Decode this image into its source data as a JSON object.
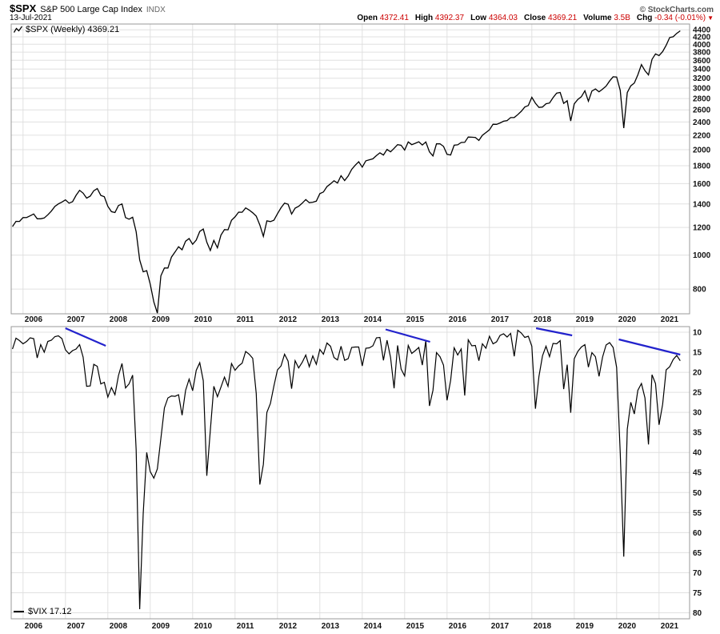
{
  "header": {
    "symbol": "$SPX",
    "name": "S&P 500 Large Cap Index",
    "exchange": "INDX",
    "date": "13-Jul-2021",
    "copyright": "© StockCharts.com",
    "quote": {
      "open_label": "Open",
      "open": "4372.41",
      "high_label": "High",
      "high": "4392.37",
      "low_label": "Low",
      "low": "4364.03",
      "close_label": "Close",
      "close": "4369.21",
      "volume_label": "Volume",
      "volume": "3.5B",
      "chg_label": "Chg",
      "chg": "-0.34 (-0.01%)",
      "chg_arrow": "▼"
    }
  },
  "legends": {
    "spx": "$SPX (Weekly) 4369.21",
    "vix": "$VIX 17.12"
  },
  "colors": {
    "line": "#000000",
    "grid": "#e0e0e0",
    "border": "#999999",
    "annotation": "#2222cc",
    "quote_down": "#cc0000",
    "axis_text": "#111111"
  },
  "chart_data": [
    {
      "type": "line",
      "title": "$SPX (Weekly) 4369.21",
      "symbol": "$SPX",
      "timeframe": "Weekly",
      "last": 4369.21,
      "scale": "log",
      "grid": true,
      "x_start": 2005.75,
      "x_interval_years": 0.0833333,
      "x_ticks": [
        2006,
        2007,
        2008,
        2009,
        2010,
        2011,
        2012,
        2013,
        2014,
        2015,
        2016,
        2017,
        2018,
        2019,
        2020,
        2021
      ],
      "y_ticks": [
        800,
        1000,
        1200,
        1400,
        1600,
        1800,
        2000,
        2200,
        2400,
        2600,
        2800,
        3000,
        3200,
        3400,
        3600,
        3800,
        4000,
        4200,
        4400
      ],
      "ylim": [
        680,
        4570
      ],
      "values": [
        1207,
        1249,
        1248,
        1280,
        1281,
        1295,
        1311,
        1270,
        1270,
        1277,
        1304,
        1336,
        1378,
        1401,
        1418,
        1438,
        1407,
        1421,
        1482,
        1531,
        1503,
        1455,
        1474,
        1527,
        1549,
        1481,
        1468,
        1379,
        1331,
        1323,
        1386,
        1400,
        1280,
        1267,
        1283,
        1166,
        969,
        896,
        903,
        826,
        735,
        683,
        873,
        919,
        919,
        987,
        1021,
        1057,
        1036,
        1096,
        1115,
        1074,
        1104,
        1169,
        1187,
        1089,
        1031,
        1102,
        1049,
        1141,
        1183,
        1181,
        1258,
        1286,
        1327,
        1326,
        1364,
        1345,
        1321,
        1292,
        1219,
        1131,
        1253,
        1247,
        1258,
        1312,
        1366,
        1408,
        1398,
        1310,
        1362,
        1379,
        1407,
        1441,
        1412,
        1416,
        1426,
        1498,
        1515,
        1569,
        1598,
        1631,
        1606,
        1686,
        1633,
        1682,
        1757,
        1806,
        1848,
        1783,
        1859,
        1872,
        1884,
        1924,
        1960,
        1931,
        2003,
        1972,
        2018,
        2068,
        2059,
        1995,
        2105,
        2068,
        2086,
        2107,
        2063,
        2104,
        1972,
        1920,
        2079,
        2080,
        2044,
        1940,
        1932,
        2060,
        2065,
        2097,
        2099,
        2174,
        2171,
        2168,
        2126,
        2199,
        2239,
        2279,
        2364,
        2363,
        2384,
        2412,
        2423,
        2470,
        2472,
        2519,
        2575,
        2648,
        2674,
        2824,
        2714,
        2641,
        2648,
        2705,
        2718,
        2816,
        2902,
        2914,
        2712,
        2760,
        2416,
        2704,
        2784,
        2834,
        2946,
        2752,
        2942,
        2980,
        2926,
        2977,
        3038,
        3141,
        3231,
        3226,
        2954,
        2305,
        2912,
        3044,
        3100,
        3271,
        3500,
        3363,
        3270,
        3622,
        3756,
        3714,
        3811,
        3973,
        4181,
        4204,
        4297,
        4369
      ]
    },
    {
      "type": "line",
      "title": "$VIX 17.12",
      "symbol": "$VIX",
      "last": 17.12,
      "scale": "linear_inverted",
      "grid": true,
      "x_start": 2005.75,
      "x_interval_years": 0.0833333,
      "x_ticks": [
        2006,
        2007,
        2008,
        2009,
        2010,
        2011,
        2012,
        2013,
        2014,
        2015,
        2016,
        2017,
        2018,
        2019,
        2020,
        2021
      ],
      "y_ticks": [
        10,
        15,
        20,
        25,
        30,
        35,
        40,
        45,
        50,
        55,
        60,
        65,
        70,
        75,
        80
      ],
      "ylim": [
        8.6,
        81.5
      ],
      "values": [
        14.2,
        11.5,
        12.1,
        12.9,
        12.3,
        11.4,
        11.6,
        16.4,
        13.1,
        15.0,
        12.3,
        12.0,
        11.1,
        10.9,
        11.6,
        14.4,
        15.4,
        14.6,
        14.2,
        13.1,
        16.2,
        23.5,
        23.4,
        18.0,
        18.5,
        22.9,
        22.5,
        26.2,
        23.8,
        25.6,
        20.8,
        17.8,
        23.9,
        22.9,
        20.7,
        39.4,
        79.1,
        55.3,
        40.0,
        44.8,
        46.4,
        44.1,
        36.5,
        28.9,
        26.4,
        25.9,
        26.0,
        25.6,
        30.7,
        24.5,
        21.7,
        24.6,
        19.5,
        17.6,
        22.1,
        45.8,
        34.5,
        23.5,
        26.1,
        23.7,
        21.2,
        23.5,
        17.8,
        19.5,
        18.4,
        17.7,
        14.8,
        15.5,
        16.5,
        25.3,
        48.0,
        43.0,
        30.0,
        27.8,
        23.4,
        19.4,
        18.4,
        15.5,
        17.2,
        24.1,
        17.1,
        18.9,
        17.5,
        15.7,
        18.6,
        15.9,
        18.0,
        14.3,
        15.5,
        12.7,
        13.5,
        16.3,
        16.9,
        13.5,
        17.0,
        16.6,
        13.8,
        13.7,
        13.7,
        18.4,
        14.0,
        13.9,
        13.4,
        11.4,
        11.3,
        17.0,
        12.0,
        16.3,
        24.0,
        13.3,
        19.2,
        20.9,
        13.3,
        15.3,
        14.6,
        13.8,
        18.2,
        12.1,
        28.4,
        24.5,
        15.1,
        16.1,
        18.2,
        27.0,
        22.0,
        13.9,
        15.7,
        14.2,
        25.8,
        11.9,
        13.4,
        13.3,
        17.1,
        12.9,
        14.0,
        11.0,
        12.9,
        12.4,
        10.8,
        10.4,
        11.2,
        10.3,
        16.0,
        9.5,
        10.2,
        11.3,
        11.0,
        13.5,
        29.1,
        21.0,
        15.9,
        13.5,
        16.1,
        12.8,
        12.9,
        12.1,
        24.2,
        18.1,
        30.1,
        16.6,
        14.8,
        13.7,
        13.1,
        18.7,
        15.1,
        16.1,
        21.0,
        16.2,
        13.2,
        12.6,
        13.8,
        18.8,
        40.1,
        66.0,
        34.2,
        27.5,
        30.4,
        24.5,
        22.8,
        26.4,
        38.0,
        20.6,
        22.8,
        33.1,
        28.0,
        19.4,
        18.6,
        16.8,
        15.8,
        17.12
      ],
      "annotations": [
        {
          "type": "trendline",
          "x1": 2007.0,
          "y1": 9.0,
          "x2": 2007.95,
          "y2": 13.4
        },
        {
          "type": "trendline",
          "x1": 2014.55,
          "y1": 9.3,
          "x2": 2015.6,
          "y2": 12.4
        },
        {
          "type": "trendline",
          "x1": 2018.1,
          "y1": 9.0,
          "x2": 2018.95,
          "y2": 10.8
        },
        {
          "type": "trendline",
          "x1": 2020.05,
          "y1": 11.8,
          "x2": 2021.5,
          "y2": 15.6
        }
      ]
    }
  ]
}
